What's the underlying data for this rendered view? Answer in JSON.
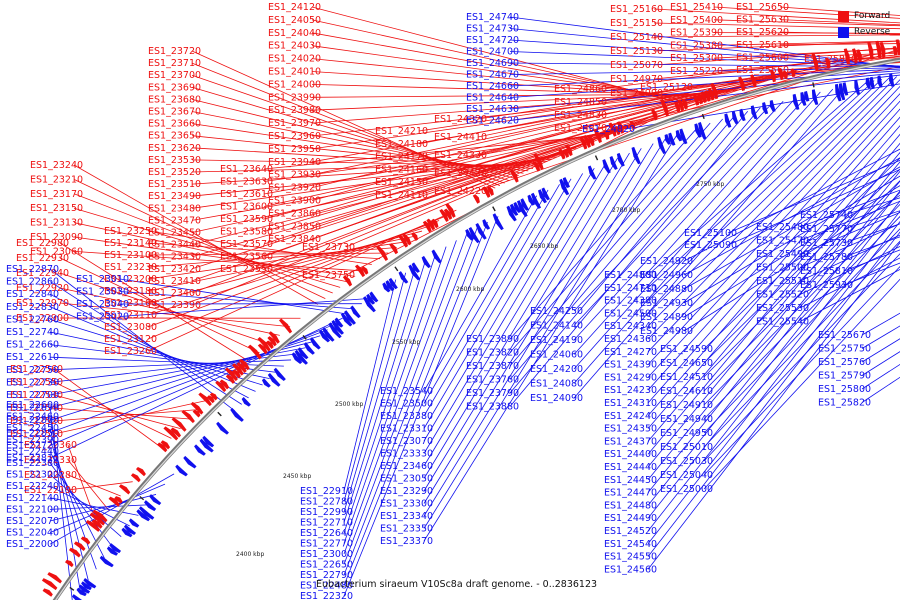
{
  "legend": {
    "forward_label": "Forward",
    "reverse_label": "Reverse",
    "forward_color": "#ee1111",
    "reverse_color": "#1111ee"
  },
  "caption": "Eubacterium siraeum V10Sc8a draft genome. - 0..2836123",
  "scale_labels": [
    "2400 kbp",
    "2450 kbp",
    "2500 kbp",
    "2550 kbp",
    "2600 kbp",
    "2650 kbp",
    "2700 kbp",
    "2750 kbp"
  ],
  "forward_genes": [
    "ES1_25840",
    "ES1_25650",
    "ES1_25630",
    "ES1_25620",
    "ES1_25610",
    "ES1_25600",
    "ES1_25560",
    "ES1_25410",
    "ES1_25400",
    "ES1_25390",
    "ES1_25380",
    "ES1_25300",
    "ES1_25220",
    "ES1_25160",
    "ES1_25150",
    "ES1_25140",
    "ES1_25130",
    "ES1_25070",
    "ES1_24970",
    "ES1_24990",
    "ES1_25120",
    "ES1_24860",
    "ES1_24850",
    "ES1_24830",
    "ES1_24870",
    "ES1_24320",
    "ES1_24410",
    "ES1_24330",
    "ES1_24420",
    "ES1_24220",
    "ES1_24120",
    "ES1_24050",
    "ES1_24040",
    "ES1_24030",
    "ES1_24020",
    "ES1_24010",
    "ES1_24000",
    "ES1_23990",
    "ES1_23980",
    "ES1_23970",
    "ES1_23960",
    "ES1_23950",
    "ES1_23940",
    "ES1_23930",
    "ES1_23920",
    "ES1_23900",
    "ES1_23860",
    "ES1_23850",
    "ES1_23840",
    "ES1_24210",
    "ES1_24180",
    "ES1_24170",
    "ES1_24160",
    "ES1_24150",
    "ES1_24110",
    "ES1_23720",
    "ES1_23710",
    "ES1_23700",
    "ES1_23690",
    "ES1_23680",
    "ES1_23670",
    "ES1_23660",
    "ES1_23650",
    "ES1_23620",
    "ES1_23530",
    "ES1_23520",
    "ES1_23510",
    "ES1_23490",
    "ES1_23480",
    "ES1_23470",
    "ES1_23450",
    "ES1_23440",
    "ES1_23430",
    "ES1_23420",
    "ES1_23410",
    "ES1_23400",
    "ES1_23390",
    "ES1_23640",
    "ES1_23630",
    "ES1_23610",
    "ES1_23600",
    "ES1_23590",
    "ES1_23580",
    "ES1_23570",
    "ES1_23560",
    "ES1_23550",
    "ES1_23730",
    "ES1_23750",
    "ES1_23240",
    "ES1_23210",
    "ES1_23170",
    "ES1_23150",
    "ES1_23130",
    "ES1_23090",
    "ES1_23250",
    "ES1_23140",
    "ES1_23100",
    "ES1_23060",
    "ES1_23230",
    "ES1_23200",
    "ES1_23180",
    "ES1_23160",
    "ES1_23110",
    "ES1_23080",
    "ES1_23120",
    "ES1_23260",
    "ES1_22980",
    "ES1_22930",
    "ES1_22940",
    "ES1_22920",
    "ES1_22970",
    "ES1_22900",
    "ES1_22560",
    "ES1_22550",
    "ES1_22530",
    "ES1_22540",
    "ES1_22520",
    "ES1_22510",
    "ES1_22360",
    "ES1_22330",
    "ES1_22280",
    "ES1_22190"
  ],
  "reverse_genes": [
    "ES1_24740",
    "ES1_24730",
    "ES1_24720",
    "ES1_24700",
    "ES1_24690",
    "ES1_24670",
    "ES1_24660",
    "ES1_24640",
    "ES1_24630",
    "ES1_24620",
    "ES1_24820",
    "ES1_25740",
    "ES1_25480",
    "ES1_25770",
    "ES1_25470",
    "ES1_25730",
    "ES1_25490",
    "ES1_25780",
    "ES1_25500",
    "ES1_25810",
    "ES1_25510",
    "ES1_25930",
    "ES1_25520",
    "ES1_25530",
    "ES1_25540",
    "ES1_25670",
    "ES1_25750",
    "ES1_25760",
    "ES1_25790",
    "ES1_25800",
    "ES1_25820",
    "ES1_25100",
    "ES1_25090",
    "ES1_24920",
    "ES1_24960",
    "ES1_24800",
    "ES1_24880",
    "ES1_24710",
    "ES1_24930",
    "ES1_24380",
    "ES1_24500",
    "ES1_24890",
    "ES1_24250",
    "ES1_24140",
    "ES1_24340",
    "ES1_24980",
    "ES1_24190",
    "ES1_24360",
    "ES1_24590",
    "ES1_24060",
    "ES1_24270",
    "ES1_24200",
    "ES1_24390",
    "ES1_24080",
    "ES1_24290",
    "ES1_24650",
    "ES1_25040",
    "ES1_24230",
    "ES1_24510",
    "ES1_25000",
    "ES1_24090",
    "ES1_24310",
    "ES1_24940",
    "ES1_24240",
    "ES1_24610",
    "ES1_24350",
    "ES1_24910",
    "ES1_24370",
    "ES1_24950",
    "ES1_24400",
    "ES1_25010",
    "ES1_25030",
    "ES1_24440",
    "ES1_24450",
    "ES1_24470",
    "ES1_24480",
    "ES1_24490",
    "ES1_24520",
    "ES1_24540",
    "ES1_24550",
    "ES1_24560",
    "ES1_23890",
    "ES1_23820",
    "ES1_23870",
    "ES1_23760",
    "ES1_23790",
    "ES1_23880",
    "ES1_23540",
    "ES1_23500",
    "ES1_23380",
    "ES1_23310",
    "ES1_23070",
    "ES1_23330",
    "ES1_23460",
    "ES1_23050",
    "ES1_23290",
    "ES1_23300",
    "ES1_23340",
    "ES1_23350",
    "ES1_23370",
    "ES1_22910",
    "ES1_22780",
    "ES1_22990",
    "ES1_22710",
    "ES1_22640",
    "ES1_22770",
    "ES1_23000",
    "ES1_22650",
    "ES1_22790",
    "ES1_22480",
    "ES1_22320",
    "ES1_22870",
    "ES1_22860",
    "ES1_22840",
    "ES1_22830",
    "ES1_22760",
    "ES1_22740",
    "ES1_22660",
    "ES1_22610",
    "ES1_22750",
    "ES1_22730",
    "ES1_22700",
    "ES1_22690",
    "ES1_22800",
    "ES1_22850",
    "ES1_22720",
    "ES1_22810",
    "ES1_22600",
    "ES1_22460",
    "ES1_22450",
    "ES1_22390",
    "ES1_22440",
    "ES1_22380",
    "ES1_22300",
    "ES1_22240",
    "ES1_22140",
    "ES1_22100",
    "ES1_22070",
    "ES1_22040",
    "ES1_22000",
    "ES1_23010",
    "ES1_23030",
    "ES1_23040",
    "ES1_23020"
  ]
}
